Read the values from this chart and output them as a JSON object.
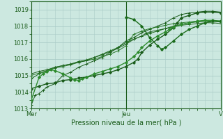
{
  "title": "",
  "xlabel": "Pression niveau de la mer( hPa )",
  "ylabel": "",
  "ylim": [
    1013,
    1019.5
  ],
  "xlim": [
    0,
    48
  ],
  "yticks": [
    1013,
    1014,
    1015,
    1016,
    1017,
    1018,
    1019
  ],
  "xtick_positions": [
    0,
    24,
    48
  ],
  "xtick_labels": [
    "Mer",
    "Jeu",
    "V"
  ],
  "bg_color": "#cce8e0",
  "grid_color": "#aaccc8",
  "line_color": "#1a5c1a",
  "series": [
    {
      "x": [
        0,
        1,
        2,
        3,
        4,
        6,
        8,
        10,
        12,
        14,
        16,
        18,
        20,
        22,
        24,
        26,
        28,
        30,
        32,
        34,
        36,
        38,
        40,
        42,
        44,
        46,
        48
      ],
      "y": [
        1013.2,
        1013.8,
        1013.9,
        1014.1,
        1014.3,
        1014.5,
        1015.0,
        1015.2,
        1015.5,
        1015.7,
        1015.9,
        1016.1,
        1016.4,
        1016.7,
        1017.1,
        1017.3,
        1017.6,
        1017.8,
        1018.0,
        1018.2,
        1018.5,
        1018.7,
        1018.8,
        1018.85,
        1018.9,
        1018.9,
        1018.85
      ],
      "marker": "+",
      "markersize": 3,
      "lw": 0.7,
      "color": "#1a5c1a"
    },
    {
      "x": [
        0,
        2,
        4,
        6,
        8,
        10,
        12,
        14,
        16,
        18,
        20,
        22,
        24,
        26,
        28,
        30,
        32,
        34,
        36,
        38,
        40,
        42,
        44,
        46,
        48
      ],
      "y": [
        1014.8,
        1015.1,
        1015.3,
        1015.5,
        1015.6,
        1015.7,
        1015.85,
        1015.95,
        1016.1,
        1016.3,
        1016.5,
        1016.7,
        1017.0,
        1017.2,
        1017.4,
        1017.55,
        1017.7,
        1017.85,
        1018.0,
        1018.1,
        1018.2,
        1018.25,
        1018.3,
        1018.3,
        1018.25
      ],
      "marker": "+",
      "markersize": 3,
      "lw": 0.7,
      "color": "#1a6b1a"
    },
    {
      "x": [
        0,
        2,
        4,
        6,
        8,
        10,
        12,
        14,
        16,
        18,
        20,
        22,
        24,
        25,
        26,
        28,
        30,
        32,
        34,
        36,
        38,
        40,
        42,
        44,
        46,
        48
      ],
      "y": [
        1015.0,
        1015.15,
        1015.3,
        1015.45,
        1015.55,
        1015.65,
        1015.8,
        1015.9,
        1016.0,
        1016.15,
        1016.3,
        1016.5,
        1016.8,
        1017.2,
        1017.5,
        1017.7,
        1017.85,
        1017.95,
        1018.05,
        1018.15,
        1018.2,
        1018.25,
        1018.3,
        1018.3,
        1018.3,
        1018.25
      ],
      "marker": "+",
      "markersize": 3,
      "lw": 0.7,
      "color": "#2a7a2a"
    },
    {
      "x": [
        0,
        2,
        4,
        6,
        8,
        10,
        12,
        14,
        16,
        18,
        20,
        22,
        24,
        26,
        28,
        29,
        30,
        32,
        34,
        36,
        38,
        40,
        42,
        44,
        46,
        48
      ],
      "y": [
        1015.1,
        1015.25,
        1015.35,
        1015.5,
        1015.6,
        1015.7,
        1015.8,
        1015.9,
        1016.1,
        1016.25,
        1016.45,
        1016.65,
        1016.9,
        1017.2,
        1017.4,
        1017.55,
        1017.65,
        1017.75,
        1017.85,
        1017.95,
        1018.05,
        1018.1,
        1018.15,
        1018.2,
        1018.2,
        1018.15
      ],
      "marker": "+",
      "markersize": 3,
      "lw": 0.7,
      "color": "#226622"
    },
    {
      "x": [
        0,
        2,
        4,
        6,
        8,
        10,
        12,
        14,
        16,
        18,
        20,
        22,
        24,
        26,
        27,
        28,
        30,
        32,
        34,
        36,
        37,
        38,
        40,
        42,
        44,
        46,
        48
      ],
      "y": [
        1014.2,
        1014.35,
        1014.5,
        1014.55,
        1014.7,
        1014.75,
        1014.85,
        1014.9,
        1015.0,
        1015.1,
        1015.2,
        1015.35,
        1015.55,
        1015.8,
        1016.0,
        1016.4,
        1016.85,
        1017.2,
        1017.5,
        1017.9,
        1018.2,
        1018.5,
        1018.65,
        1018.8,
        1018.85,
        1018.85,
        1018.8
      ],
      "marker": "D",
      "markersize": 2,
      "lw": 1.0,
      "color": "#1a5c1a"
    },
    {
      "x": [
        0,
        2,
        3,
        4,
        5,
        6,
        8,
        10,
        11,
        12,
        13,
        14,
        16,
        18,
        20,
        22,
        24,
        26,
        27,
        28,
        30,
        32,
        34,
        35,
        36,
        38,
        40,
        42,
        44,
        46,
        48
      ],
      "y": [
        1013.5,
        1014.9,
        1015.1,
        1015.25,
        1015.35,
        1015.3,
        1015.1,
        1014.85,
        1014.75,
        1014.7,
        1014.8,
        1014.9,
        1015.1,
        1015.25,
        1015.4,
        1015.55,
        1015.8,
        1016.15,
        1016.4,
        1016.7,
        1017.1,
        1017.4,
        1017.65,
        1017.8,
        1017.95,
        1018.1,
        1018.2,
        1018.3,
        1018.35,
        1018.35,
        1018.3
      ],
      "marker": "D",
      "markersize": 2,
      "lw": 1.0,
      "color": "#2d8b2d"
    },
    {
      "x": [
        24,
        26,
        28,
        30,
        32,
        33,
        34,
        36,
        38,
        40,
        42,
        44,
        46,
        48
      ],
      "y": [
        1018.55,
        1018.4,
        1018.0,
        1017.3,
        1016.8,
        1016.6,
        1016.7,
        1017.1,
        1017.5,
        1017.8,
        1018.0,
        1018.2,
        1018.3,
        1018.3
      ],
      "marker": "D",
      "markersize": 2,
      "lw": 1.0,
      "color": "#1a6b1a"
    }
  ],
  "vline_x": 24,
  "vline_color": "#1a5c1a"
}
